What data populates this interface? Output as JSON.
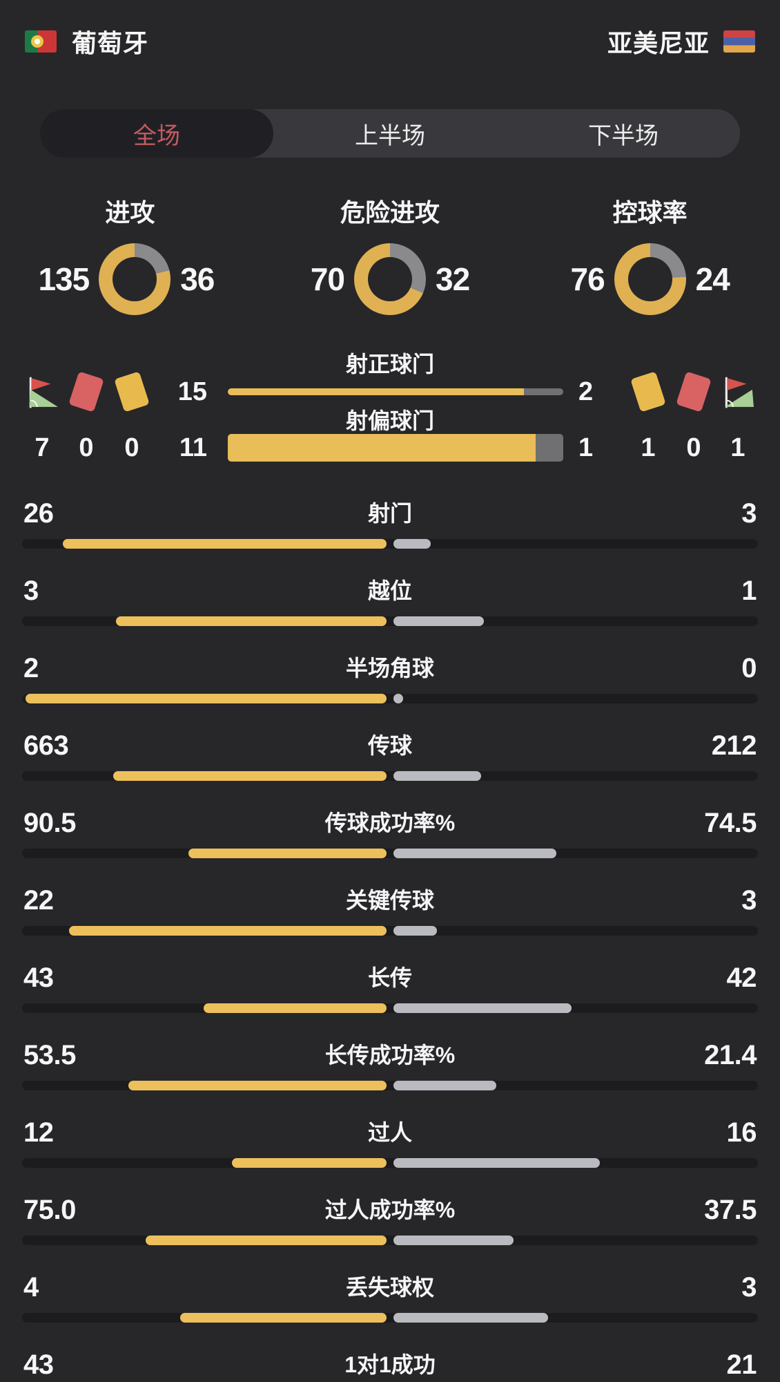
{
  "colors": {
    "home_yellow": "#dfb153",
    "donut_away": "#8a8a8c",
    "bar_home": "#edc05c",
    "bar_away": "#babbc0",
    "shotbar_away": "#707073",
    "accent_red": "#c25c61"
  },
  "header": {
    "home_name": "葡萄牙",
    "away_name": "亚美尼亚"
  },
  "tabs": [
    {
      "label": "全场",
      "active": true
    },
    {
      "label": "上半场",
      "active": false
    },
    {
      "label": "下半场",
      "active": false
    }
  ],
  "donuts": [
    {
      "label": "进攻",
      "home": 135,
      "away": 36
    },
    {
      "label": "危险进攻",
      "home": 70,
      "away": 32
    },
    {
      "label": "控球率",
      "home": 76,
      "away": 24
    }
  ],
  "discipline": {
    "home": {
      "corner_flags": 7,
      "red_cards": 0,
      "yellow_cards": 0
    },
    "away": {
      "yellow_cards": 1,
      "red_cards": 0,
      "corner_flags": 1
    }
  },
  "shot_bars": [
    {
      "label": "射正球门",
      "home": 15,
      "away": 2
    },
    {
      "label": "射偏球门",
      "home": 11,
      "away": 1
    }
  ],
  "stats": [
    {
      "label": "射门",
      "home": "26",
      "away": "3"
    },
    {
      "label": "越位",
      "home": "3",
      "away": "1"
    },
    {
      "label": "半场角球",
      "home": "2",
      "away": "0"
    },
    {
      "label": "传球",
      "home": "663",
      "away": "212"
    },
    {
      "label": "传球成功率%",
      "home": "90.5",
      "away": "74.5"
    },
    {
      "label": "关键传球",
      "home": "22",
      "away": "3"
    },
    {
      "label": "长传",
      "home": "43",
      "away": "42"
    },
    {
      "label": "长传成功率%",
      "home": "53.5",
      "away": "21.4"
    },
    {
      "label": "过人",
      "home": "12",
      "away": "16"
    },
    {
      "label": "过人成功率%",
      "home": "75.0",
      "away": "37.5"
    },
    {
      "label": "丢失球权",
      "home": "4",
      "away": "3"
    },
    {
      "label": "1对1成功",
      "home": "43",
      "away": "21"
    }
  ],
  "chart_data": [
    {
      "type": "pie",
      "style": "donut",
      "title": "进攻",
      "labels": [
        "葡萄牙",
        "亚美尼亚"
      ],
      "values": [
        135,
        36
      ],
      "colors": [
        "#dfb153",
        "#8a8a8c"
      ]
    },
    {
      "type": "pie",
      "style": "donut",
      "title": "危险进攻",
      "labels": [
        "葡萄牙",
        "亚美尼亚"
      ],
      "values": [
        70,
        32
      ],
      "colors": [
        "#dfb153",
        "#8a8a8c"
      ]
    },
    {
      "type": "pie",
      "style": "donut",
      "title": "控球率",
      "labels": [
        "葡萄牙",
        "亚美尼亚"
      ],
      "values": [
        76,
        24
      ],
      "colors": [
        "#dfb153",
        "#8a8a8c"
      ]
    },
    {
      "type": "bar",
      "orientation": "horizontal",
      "title": "比赛统计对比",
      "categories": [
        "射正球门",
        "射偏球门",
        "射门",
        "越位",
        "半场角球",
        "传球",
        "传球成功率%",
        "关键传球",
        "长传",
        "长传成功率%",
        "过人",
        "过人成功率%",
        "丢失球权",
        "1对1成功"
      ],
      "series": [
        {
          "name": "葡萄牙",
          "values": [
            15,
            11,
            26,
            3,
            2,
            663,
            90.5,
            22,
            43,
            53.5,
            12,
            75.0,
            4,
            43
          ]
        },
        {
          "name": "亚美尼亚",
          "values": [
            2,
            1,
            3,
            1,
            0,
            212,
            74.5,
            3,
            42,
            21.4,
            16,
            37.5,
            3,
            21
          ]
        }
      ]
    }
  ]
}
